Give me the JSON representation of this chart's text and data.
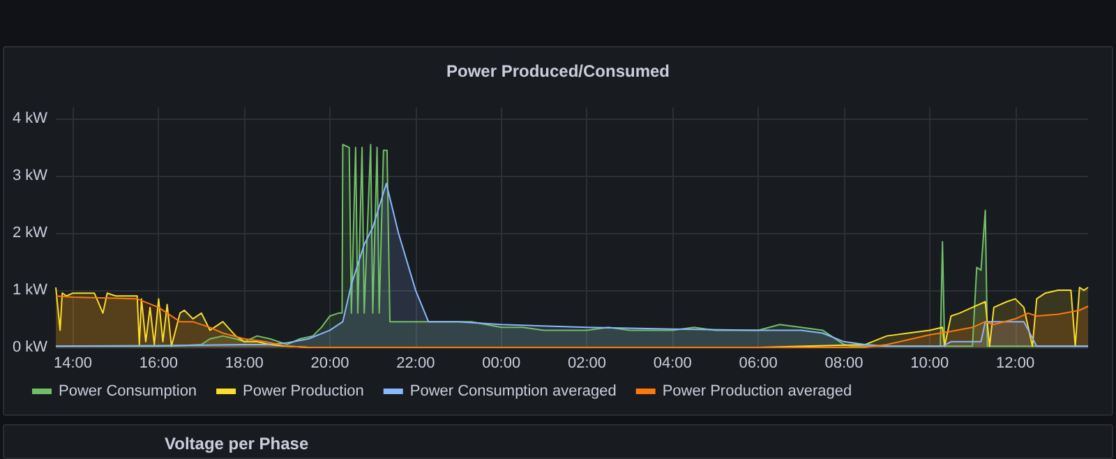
{
  "chart_data": {
    "type": "area",
    "title": "Power Produced/Consumed",
    "annotations": [
      "Voltage per Phase"
    ],
    "xlim": [
      "--01-01T13:36",
      "--01-02T13:42"
    ],
    "xticks": [
      {
        "value": "--01-01T14:00",
        "label": "14:00"
      },
      {
        "value": "--01-01T16:00",
        "label": "16:00"
      },
      {
        "value": "--01-01T18:00",
        "label": "18:00"
      },
      {
        "value": "--01-01T20:00",
        "label": "20:00"
      },
      {
        "value": "--01-01T22:00",
        "label": "22:00"
      },
      {
        "value": "--01-02T00:00",
        "label": "00:00"
      },
      {
        "value": "--01-02T02:00",
        "label": "02:00"
      },
      {
        "value": "--01-02T04:00",
        "label": "04:00"
      },
      {
        "value": "--01-02T06:00",
        "label": "06:00"
      },
      {
        "value": "--01-02T08:00",
        "label": "08:00"
      },
      {
        "value": "--01-02T10:00",
        "label": "10:00"
      },
      {
        "value": "--01-02T12:00",
        "label": "12:00"
      }
    ],
    "ylim": [
      0,
      4.2
    ],
    "yticks": [
      {
        "value": 0,
        "label": "0 kW"
      },
      {
        "value": 1,
        "label": "1 kW"
      },
      {
        "value": 2,
        "label": "2 kW"
      },
      {
        "value": 3,
        "label": "3 kW"
      },
      {
        "value": 4,
        "label": "4 kW"
      }
    ],
    "grid": true,
    "legend": "bottom",
    "marker": "none",
    "line_style": "solid",
    "series": [
      {
        "name": "Power Consumption",
        "color": "#73bf69",
        "x": [
          "--01-01T13:36",
          "--01-01T14:00",
          "--01-01T14:30",
          "--01-01T15:00",
          "--01-01T15:30",
          "--01-01T16:00",
          "--01-01T16:30",
          "--01-01T17:00",
          "--01-01T17:12",
          "--01-01T17:30",
          "--01-01T17:48",
          "--01-01T18:00",
          "--01-01T18:18",
          "--01-01T18:36",
          "--01-01T19:00",
          "--01-01T19:18",
          "--01-01T19:36",
          "--01-01T19:48",
          "--01-01T20:00",
          "--01-01T20:12",
          "--01-01T20:17",
          "--01-01T20:18",
          "--01-01T20:27",
          "--01-01T20:30",
          "--01-01T20:36",
          "--01-01T20:39",
          "--01-01T20:45",
          "--01-01T20:48",
          "--01-01T20:57",
          "--01-01T21:00",
          "--01-01T21:06",
          "--01-01T21:09",
          "--01-01T21:15",
          "--01-01T21:20",
          "--01-01T21:24",
          "--01-01T21:48",
          "--01-01T22:18",
          "--01-01T22:48",
          "--01-01T23:18",
          "--01-02T00:00",
          "--01-02T00:30",
          "--01-02T01:00",
          "--01-02T01:30",
          "--01-02T02:00",
          "--01-02T02:30",
          "--01-02T03:00",
          "--01-02T03:30",
          "--01-02T04:00",
          "--01-02T04:30",
          "--01-02T05:00",
          "--01-02T05:30",
          "--01-02T06:00",
          "--01-02T06:30",
          "--01-02T07:00",
          "--01-02T07:30",
          "--01-02T08:00",
          "--01-02T08:12",
          "--01-02T08:30",
          "--01-02T09:00",
          "--01-02T09:30",
          "--01-02T10:00",
          "--01-02T10:15",
          "--01-02T10:18",
          "--01-02T10:21",
          "--01-02T10:30",
          "--01-02T11:00",
          "--01-02T11:06",
          "--01-02T11:12",
          "--01-02T11:18",
          "--01-02T11:21",
          "--01-02T11:24",
          "--01-02T11:30",
          "--01-02T11:48",
          "--01-02T12:00",
          "--01-02T12:30",
          "--01-02T13:00",
          "--01-02T13:42"
        ],
        "values": [
          0.02,
          0.02,
          0.02,
          0.02,
          0.02,
          0.02,
          0.03,
          0.05,
          0.15,
          0.2,
          0.15,
          0.1,
          0.2,
          0.15,
          0.05,
          0.15,
          0.2,
          0.35,
          0.55,
          0.6,
          0.6,
          3.55,
          3.5,
          0.6,
          3.5,
          0.6,
          3.5,
          0.6,
          3.55,
          0.6,
          3.5,
          0.6,
          3.45,
          3.45,
          0.45,
          0.45,
          0.45,
          0.45,
          0.45,
          0.35,
          0.35,
          0.3,
          0.3,
          0.3,
          0.35,
          0.3,
          0.3,
          0.3,
          0.35,
          0.3,
          0.3,
          0.3,
          0.4,
          0.35,
          0.3,
          0.05,
          0.02,
          0.02,
          0.02,
          0.02,
          0.02,
          0.02,
          1.85,
          0.02,
          0.02,
          0.02,
          1.4,
          1.35,
          2.4,
          0.02,
          0.02,
          0.02,
          0.02,
          0.02,
          0.02,
          0.02,
          0.02
        ]
      },
      {
        "name": "Power Production",
        "color": "#fade2a",
        "x": [
          "--01-01T13:36",
          "--01-01T13:42",
          "--01-01T13:45",
          "--01-01T13:51",
          "--01-01T14:00",
          "--01-01T14:30",
          "--01-01T14:42",
          "--01-01T14:48",
          "--01-01T15:00",
          "--01-01T15:30",
          "--01-01T15:33",
          "--01-01T15:36",
          "--01-01T15:42",
          "--01-01T15:48",
          "--01-01T15:54",
          "--01-01T16:00",
          "--01-01T16:06",
          "--01-01T16:12",
          "--01-01T16:18",
          "--01-01T16:30",
          "--01-01T16:36",
          "--01-01T16:48",
          "--01-01T17:00",
          "--01-01T17:12",
          "--01-01T17:30",
          "--01-01T17:48",
          "--01-01T18:00",
          "--01-01T18:18",
          "--01-01T18:36",
          "--01-01T19:00",
          "--01-01T19:30",
          "--01-02T00:00",
          "--01-02T06:00",
          "--01-02T08:30",
          "--01-02T09:00",
          "--01-02T09:30",
          "--01-02T10:00",
          "--01-02T10:18",
          "--01-02T10:21",
          "--01-02T10:30",
          "--01-02T10:42",
          "--01-02T11:00",
          "--01-02T11:18",
          "--01-02T11:24",
          "--01-02T11:30",
          "--01-02T11:48",
          "--01-02T12:00",
          "--01-02T12:12",
          "--01-02T12:24",
          "--01-02T12:30",
          "--01-02T12:42",
          "--01-02T13:00",
          "--01-02T13:18",
          "--01-02T13:24",
          "--01-02T13:30",
          "--01-02T13:36",
          "--01-02T13:42"
        ],
        "values": [
          1.05,
          0.3,
          0.95,
          0.9,
          0.95,
          0.95,
          0.6,
          0.95,
          0.9,
          0.9,
          0.05,
          0.85,
          0.1,
          0.7,
          0.05,
          0.85,
          0.1,
          0.75,
          0.02,
          0.6,
          0.65,
          0.5,
          0.6,
          0.3,
          0.45,
          0.2,
          0.1,
          0.1,
          0.05,
          0.02,
          0,
          0,
          0,
          0.05,
          0.2,
          0.25,
          0.3,
          0.35,
          0.02,
          0.55,
          0.6,
          0.7,
          0.8,
          0.02,
          0.7,
          0.8,
          0.85,
          0.7,
          0.02,
          0.85,
          0.95,
          1.0,
          1.0,
          0.02,
          1.05,
          1.0,
          1.05
        ]
      },
      {
        "name": "Power Consumption averaged",
        "color": "#8ab8ff",
        "x": [
          "--01-01T13:36",
          "--01-01T16:00",
          "--01-01T18:00",
          "--01-01T18:30",
          "--01-01T19:00",
          "--01-01T19:30",
          "--01-01T20:00",
          "--01-01T20:18",
          "--01-01T20:30",
          "--01-01T20:48",
          "--01-01T21:00",
          "--01-01T21:19",
          "--01-01T21:36",
          "--01-01T22:00",
          "--01-01T22:18",
          "--01-01T23:00",
          "--01-02T00:00",
          "--01-02T02:00",
          "--01-02T04:00",
          "--01-02T06:00",
          "--01-02T07:00",
          "--01-02T07:30",
          "--01-02T08:00",
          "--01-02T08:30",
          "--01-02T09:00",
          "--01-02T10:00",
          "--01-02T10:18",
          "--01-02T10:30",
          "--01-02T11:00",
          "--01-02T11:12",
          "--01-02T11:18",
          "--01-02T11:30",
          "--01-02T12:00",
          "--01-02T12:12",
          "--01-02T12:30",
          "--01-02T12:42",
          "--01-02T13:00",
          "--01-02T13:42"
        ],
        "values": [
          0.02,
          0.03,
          0.05,
          0.05,
          0.08,
          0.15,
          0.3,
          0.45,
          1.1,
          1.8,
          2.1,
          2.87,
          2.0,
          1.0,
          0.45,
          0.45,
          0.4,
          0.35,
          0.32,
          0.3,
          0.3,
          0.25,
          0.1,
          0.05,
          0.02,
          0.02,
          0.02,
          0.1,
          0.1,
          0.1,
          0.45,
          0.45,
          0.45,
          0.45,
          0.02,
          0.02,
          0.02,
          0.02
        ]
      },
      {
        "name": "Power Production averaged",
        "color": "#ff780a",
        "x": [
          "--01-01T13:36",
          "--01-01T14:00",
          "--01-01T15:00",
          "--01-01T15:30",
          "--01-01T16:00",
          "--01-01T16:30",
          "--01-01T16:48",
          "--01-01T17:12",
          "--01-01T17:30",
          "--01-01T18:00",
          "--01-01T18:30",
          "--01-01T19:00",
          "--01-01T19:30",
          "--01-02T08:30",
          "--01-02T09:00",
          "--01-02T10:00",
          "--01-02T10:30",
          "--01-02T11:00",
          "--01-02T11:18",
          "--01-02T11:30",
          "--01-02T12:00",
          "--01-02T12:18",
          "--01-02T12:30",
          "--01-02T13:00",
          "--01-02T13:30",
          "--01-02T13:42"
        ],
        "values": [
          0.9,
          0.88,
          0.86,
          0.85,
          0.7,
          0.45,
          0.45,
          0.35,
          0.25,
          0.15,
          0.1,
          0.02,
          0,
          0,
          0.05,
          0.22,
          0.28,
          0.35,
          0.45,
          0.4,
          0.5,
          0.6,
          0.55,
          0.58,
          0.65,
          0.72
        ]
      }
    ]
  }
}
